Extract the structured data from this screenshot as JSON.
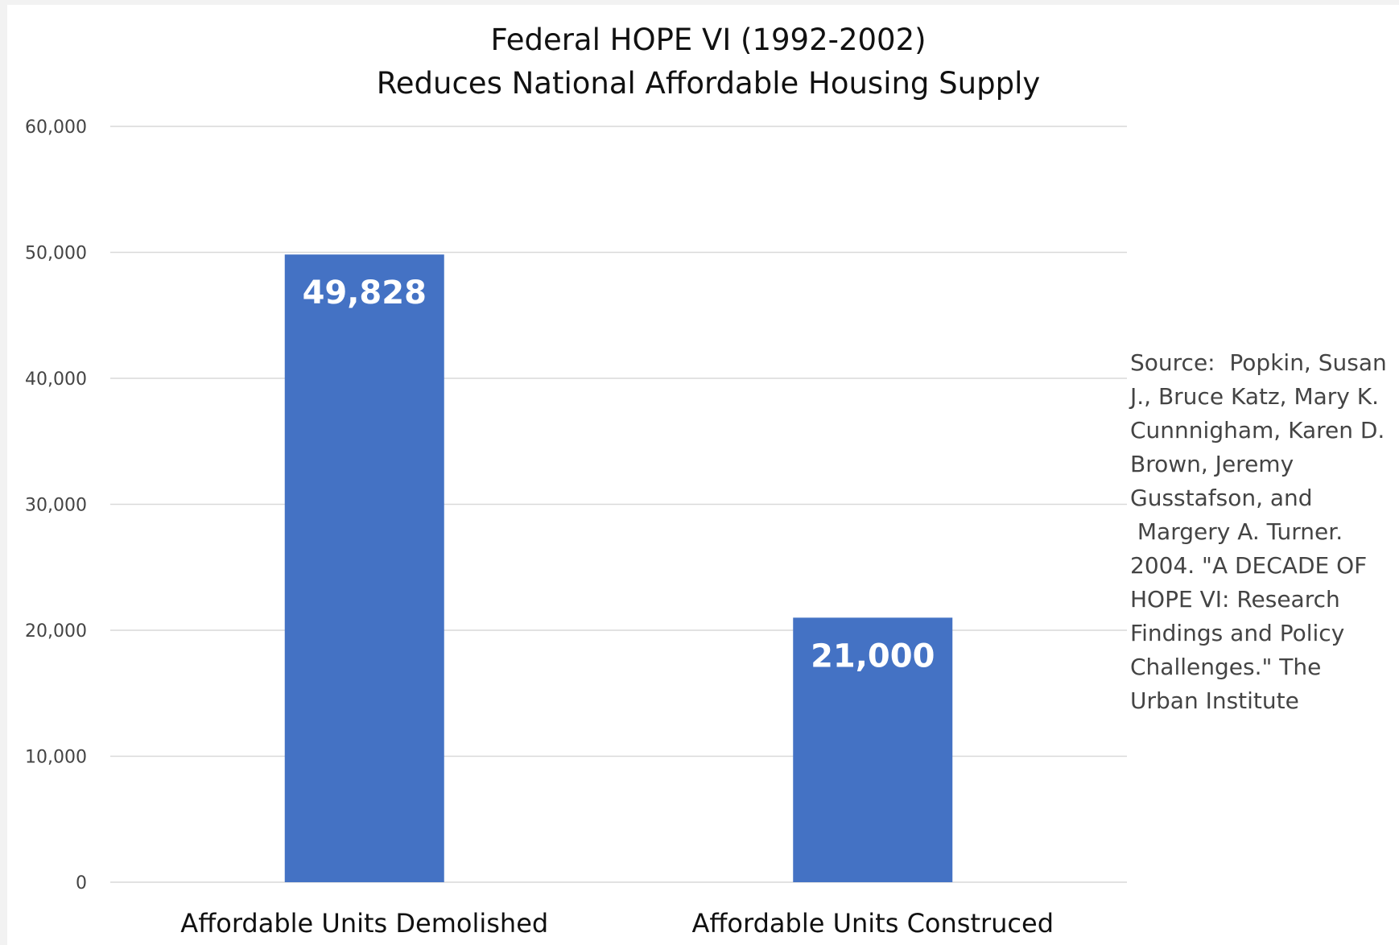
{
  "chart_data": {
    "type": "bar",
    "title": [
      "Federal HOPE VI (1992-2002)",
      "Reduces National Affordable Housing Supply"
    ],
    "categories": [
      "Affordable Units Demolished",
      "Affordable Units Construced"
    ],
    "values": [
      49828,
      21000
    ],
    "data_labels": [
      "49,828",
      "21,000"
    ],
    "ylim": [
      0,
      60000
    ],
    "yticks": [
      0,
      10000,
      20000,
      30000,
      40000,
      50000,
      60000
    ],
    "ytick_labels": [
      "0",
      "10,000",
      "20,000",
      "30,000",
      "40,000",
      "50,000",
      "60,000"
    ],
    "bar_color": "#4472c4",
    "grid": true,
    "legend": "none",
    "annotation": "Source:  Popkin, Susan\nJ., Bruce Katz, Mary K.\nCunnnigham, Karen D.\nBrown, Jeremy\nGusstafson, and\n Margery A. Turner.\n2004. \"A DECADE OF\nHOPE VI: Research\nFindings and Policy\nChallenges.\" The\nUrban Institute"
  }
}
